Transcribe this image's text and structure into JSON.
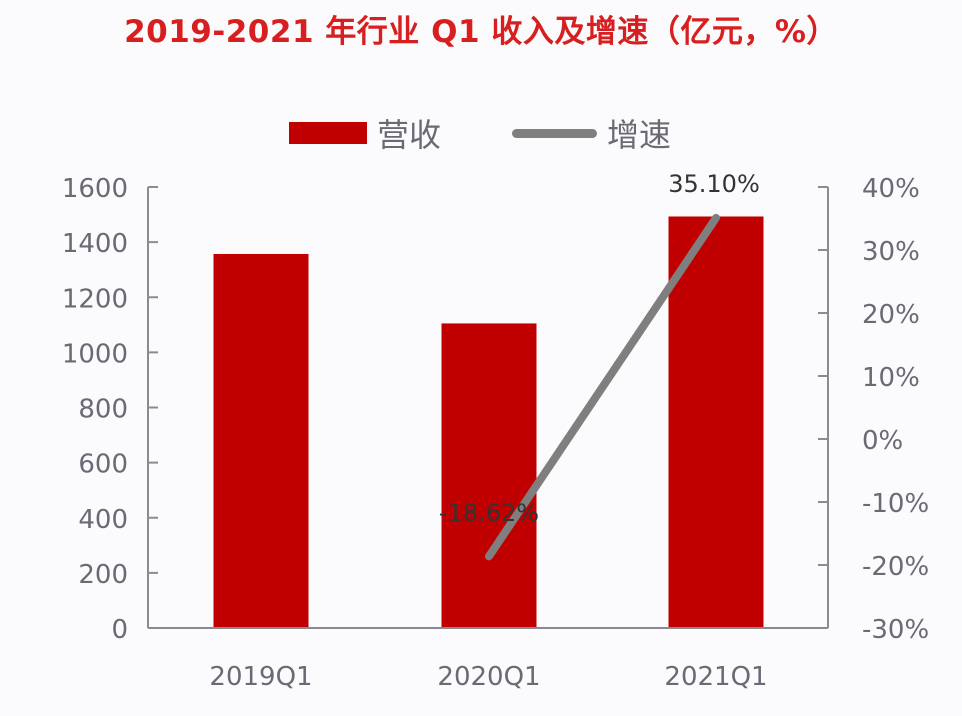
{
  "title": "2019-2021 年行业 Q1 收入及增速（亿元，%）",
  "legend": {
    "bar_label": "营收",
    "line_label": "增速"
  },
  "colors": {
    "title": "#d81e1e",
    "bar": "#c00000",
    "line": "#7f7f7f",
    "axis": "#8a8a92",
    "tick_text": "#6a6a75"
  },
  "chart_data": {
    "type": "bar",
    "title": "2019-2021 年行业 Q1 收入及增速（亿元，%）",
    "categories": [
      "2019Q1",
      "2020Q1",
      "2021Q1"
    ],
    "series": [
      {
        "name": "营收",
        "type": "bar",
        "axis": "left",
        "values": [
          1357,
          1105,
          1493
        ]
      },
      {
        "name": "增速",
        "type": "line",
        "axis": "right",
        "values": [
          null,
          -18.62,
          35.1
        ],
        "labels": [
          "",
          "-18.62%",
          "35.10%"
        ]
      }
    ],
    "y_left": {
      "min": 0,
      "max": 1600,
      "step": 200,
      "ticks": [
        "0",
        "200",
        "400",
        "600",
        "800",
        "1000",
        "1200",
        "1400",
        "1600"
      ]
    },
    "y_right": {
      "min": -30,
      "max": 40,
      "step": 10,
      "ticks": [
        "-30%",
        "-20%",
        "-10%",
        "0%",
        "10%",
        "20%",
        "30%",
        "40%"
      ]
    },
    "xlabel": "",
    "ylabel": "",
    "grid": false,
    "legend_position": "top"
  }
}
